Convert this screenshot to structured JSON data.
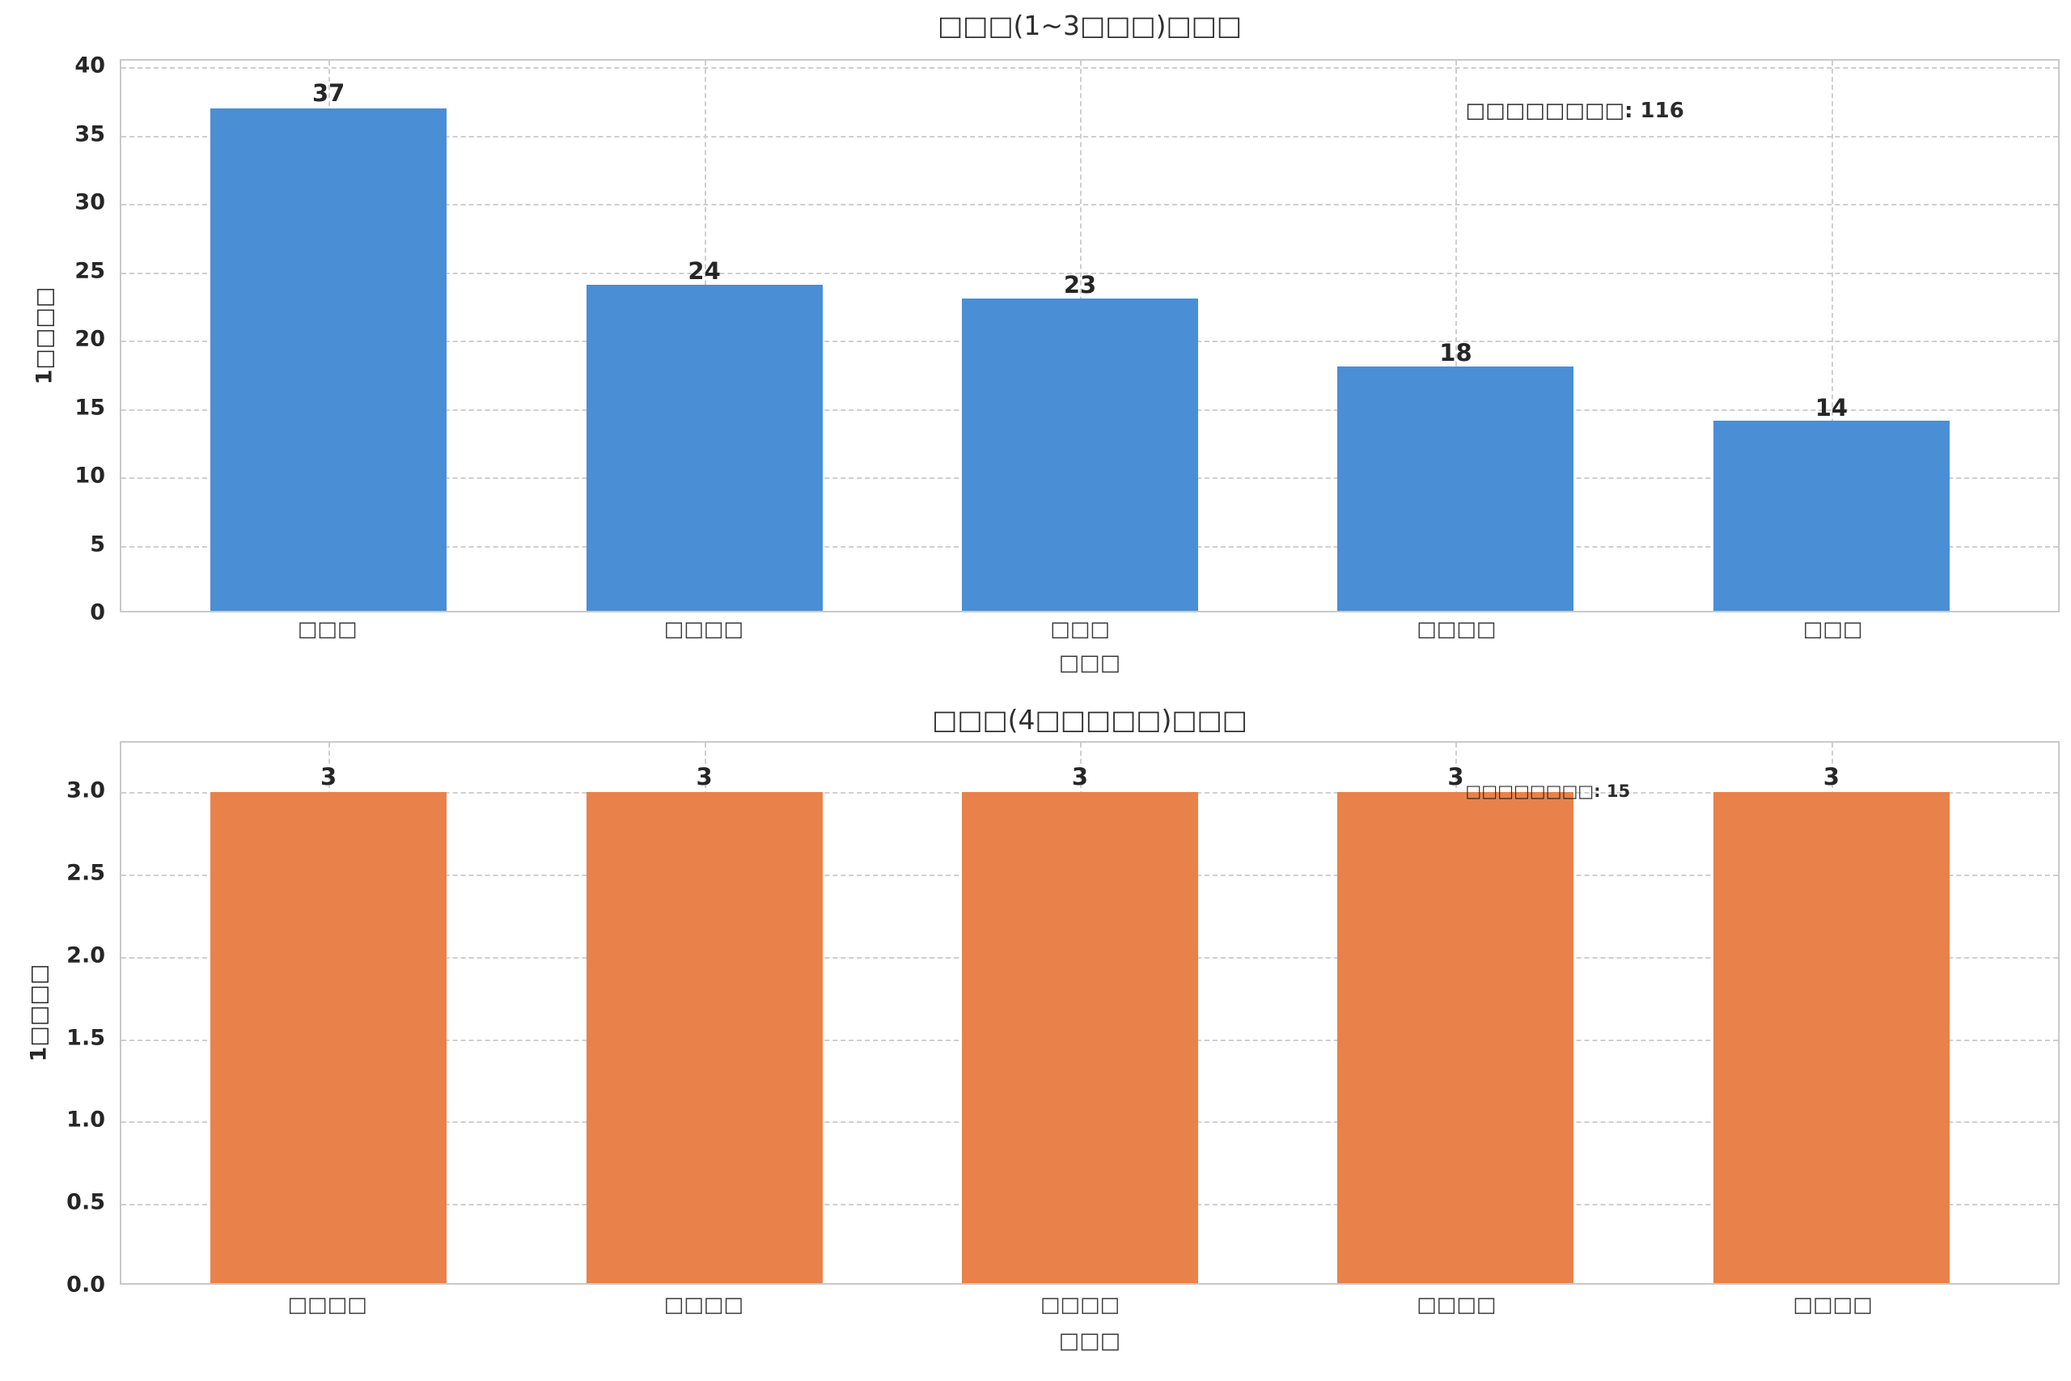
{
  "figure": {
    "background": "#ffffff",
    "grid_color": "#cfcfcf",
    "frame_color": "#c9c9c9",
    "text_color": "#262626"
  },
  "chart_data": [
    {
      "type": "bar",
      "title": "□□□(1~3□□□)□□□",
      "xlabel": "□□□",
      "ylabel": "1□□□□",
      "categories": [
        "□□□",
        "□□□□",
        "□□□",
        "□□□□",
        "□□□"
      ],
      "values": [
        37,
        24,
        23,
        18,
        14
      ],
      "value_labels": [
        "37",
        "24",
        "23",
        "18",
        "14"
      ],
      "bar_color": "#4a8ed5",
      "ylim": [
        0,
        40.5
      ],
      "yticks": [
        0,
        5,
        10,
        15,
        20,
        25,
        30,
        35,
        40
      ],
      "ytick_labels": [
        "0",
        "5",
        "10",
        "15",
        "20",
        "25",
        "30",
        "35",
        "40"
      ],
      "grid": "dashed-both-axes",
      "legend": "none",
      "annotation": "□□□□□□□□: 116"
    },
    {
      "type": "bar",
      "title": "□□□(4□□□□□)□□□",
      "xlabel": "□□□",
      "ylabel": "1□□□□",
      "categories": [
        "□□□□",
        "□□□□",
        "□□□□",
        "□□□□",
        "□□□□"
      ],
      "values": [
        3,
        3,
        3,
        3,
        3
      ],
      "value_labels": [
        "3",
        "3",
        "3",
        "3",
        "3"
      ],
      "bar_color": "#e8824a",
      "ylim": [
        0,
        3.3
      ],
      "yticks": [
        0,
        0.5,
        1,
        1.5,
        2,
        2.5,
        3
      ],
      "ytick_labels": [
        "0.0",
        "0.5",
        "1.0",
        "1.5",
        "2.0",
        "2.5",
        "3.0"
      ],
      "grid": "dashed-both-axes",
      "legend": "none",
      "annotation": "□□□□□□□□: 15"
    }
  ]
}
